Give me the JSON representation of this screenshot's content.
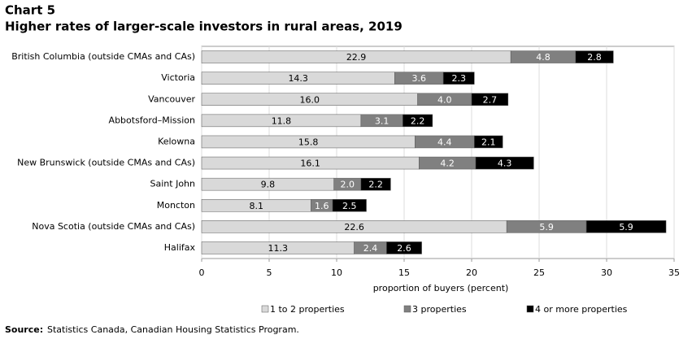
{
  "chart_data": {
    "type": "stacked-barh",
    "chart_label": "Chart 5",
    "title": "Higher rates of larger-scale investors in rural areas, 2019",
    "categories": [
      "British Columbia (outside CMAs and CAs)",
      "Victoria",
      "Vancouver",
      "Abbotsford–Mission",
      "Kelowna",
      "New Brunswick (outside CMAs and CAs)",
      "Saint John",
      "Moncton",
      "Nova Scotia (outside CMAs and CAs)",
      "Halifax"
    ],
    "series": [
      {
        "name": "1 to 2 properties",
        "color": "#d9d9d9",
        "label_color": "#000000",
        "values": [
          22.9,
          14.3,
          16.0,
          11.8,
          15.8,
          16.1,
          9.8,
          8.1,
          22.6,
          11.3
        ],
        "value_labels": [
          "22.9",
          "14.3",
          "16.0",
          "11.8",
          "15.8",
          "16.1",
          "9.8",
          "8.1",
          "22.6",
          "11.3"
        ]
      },
      {
        "name": "3 properties",
        "color": "#808080",
        "label_color": "#ffffff",
        "values": [
          4.8,
          3.6,
          4.0,
          3.1,
          4.4,
          4.2,
          2.0,
          1.6,
          5.9,
          2.4
        ],
        "value_labels": [
          "4.8",
          "3.6",
          "4.0",
          "3.1",
          "4.4",
          "4.2",
          "2.0",
          "1.6",
          "5.9",
          "2.4"
        ]
      },
      {
        "name": "4 or more properties",
        "color": "#000000",
        "label_color": "#ffffff",
        "values": [
          2.8,
          2.3,
          2.7,
          2.2,
          2.1,
          4.3,
          2.2,
          2.5,
          5.9,
          2.6
        ],
        "value_labels": [
          "2.8",
          "2.3",
          "2.7",
          "2.2",
          "2.1",
          "4.3",
          "2.2",
          "2.5",
          "5.9",
          "2.6"
        ]
      }
    ],
    "xlabel": "proportion of buyers (percent)",
    "xlim": [
      0,
      35
    ],
    "xticks": [
      0,
      5,
      10,
      15,
      20,
      25,
      30,
      35
    ],
    "grid": true,
    "source_label": "Source:",
    "source_text": "Statistics Canada, Canadian Housing Statistics Program."
  }
}
